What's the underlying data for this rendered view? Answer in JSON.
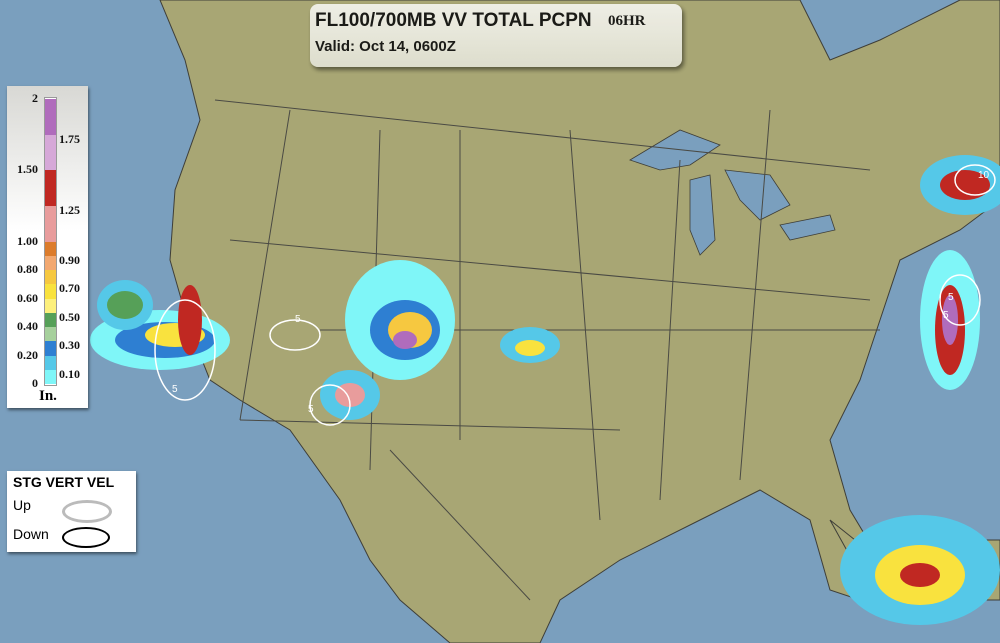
{
  "title": {
    "product": "FL100/700MB VV TOTAL PCPN",
    "period": "06HR",
    "valid": "Valid: Oct 14, 0600Z"
  },
  "colors": {
    "ocean": "#7a9fbe",
    "land": "#a8a674",
    "lakes": "#7a9fbe",
    "borders": "#4a4a44"
  },
  "precip_legend": {
    "unit": "In.",
    "left_labels": [
      "2",
      "1.50",
      "1.00",
      "0.80",
      "0.60",
      "0.40",
      "0.20",
      "0"
    ],
    "right_labels": [
      "1.75",
      "1.25",
      "0.90",
      "0.70",
      "0.50",
      "0.30",
      "0.10"
    ],
    "bins": [
      {
        "from": 0,
        "to": 0.1,
        "color": "#7ff6f8"
      },
      {
        "from": 0.1,
        "to": 0.2,
        "color": "#55c8e8"
      },
      {
        "from": 0.2,
        "to": 0.3,
        "color": "#2e7fd2"
      },
      {
        "from": 0.3,
        "to": 0.4,
        "color": "#a6d09c"
      },
      {
        "from": 0.4,
        "to": 0.5,
        "color": "#56a058"
      },
      {
        "from": 0.5,
        "to": 0.6,
        "color": "#fdf07c"
      },
      {
        "from": 0.6,
        "to": 0.7,
        "color": "#f9e23e"
      },
      {
        "from": 0.7,
        "to": 0.8,
        "color": "#f6c840"
      },
      {
        "from": 0.8,
        "to": 0.9,
        "color": "#f2a870"
      },
      {
        "from": 0.9,
        "to": 1.0,
        "color": "#dc7c2c"
      },
      {
        "from": 1.0,
        "to": 1.25,
        "color": "#e89c9c"
      },
      {
        "from": 1.25,
        "to": 1.5,
        "color": "#c02822"
      },
      {
        "from": 1.5,
        "to": 1.75,
        "color": "#d6a8d8"
      },
      {
        "from": 1.75,
        "to": 2.0,
        "color": "#b06cbc"
      }
    ]
  },
  "vert_vel_legend": {
    "title": "STG VERT VEL",
    "up": "Up",
    "down": "Down",
    "up_color": "#bbbbbb",
    "down_color": "#000000"
  },
  "contour_labels": [
    "5",
    "5",
    "5",
    "5",
    "10",
    "5"
  ]
}
